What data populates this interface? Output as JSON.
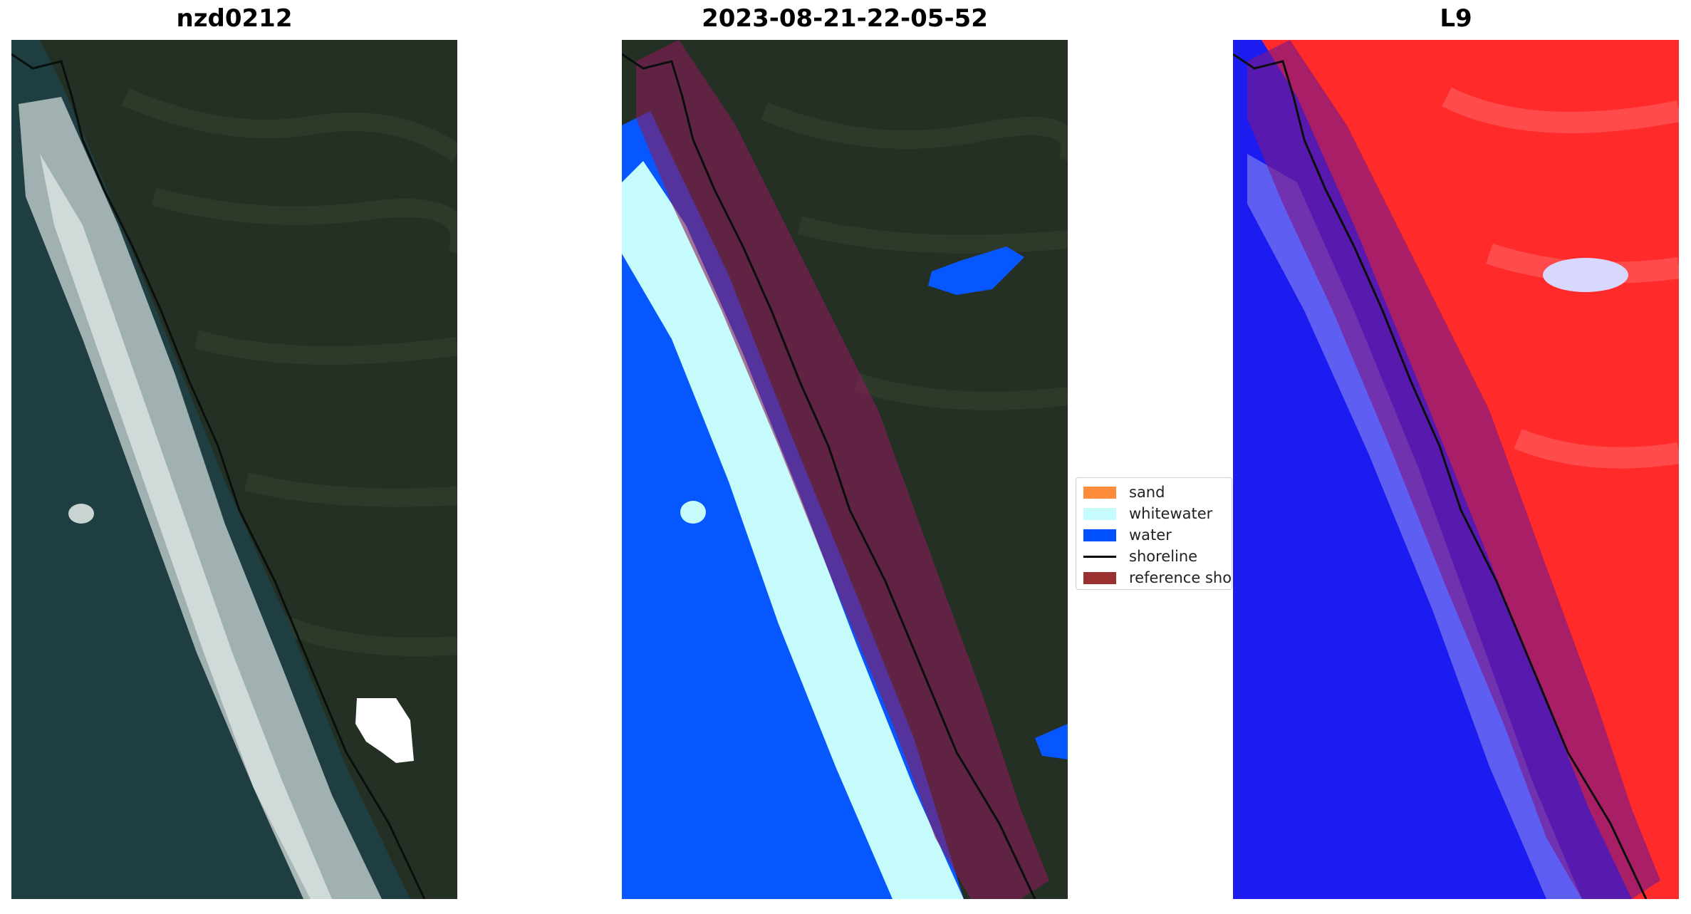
{
  "panels": [
    {
      "title": "nzd0212",
      "kind": "rgb-satellite"
    },
    {
      "title": "2023-08-21-22-05-52",
      "kind": "classified-overlay"
    },
    {
      "title": "L9",
      "kind": "index-overlay"
    }
  ],
  "legend": {
    "items": [
      {
        "label": "sand",
        "color": "#ff8c3a"
      },
      {
        "label": "whitewater",
        "color": "#c6fbfb"
      },
      {
        "label": "water",
        "color": "#0052ff"
      },
      {
        "label": "shoreline",
        "color": "#000000"
      },
      {
        "label": "reference shor",
        "color": "#9b3030"
      }
    ]
  },
  "colors": {
    "land": "#253024",
    "sea": "#1d3d40",
    "surf": "#c8d2d0",
    "water": "#0657ff",
    "whitewater": "#c6fbfb",
    "buffer": "#8a1a5a",
    "index_land": "#ff2a2a",
    "index_sea": "#1c1cf0"
  }
}
